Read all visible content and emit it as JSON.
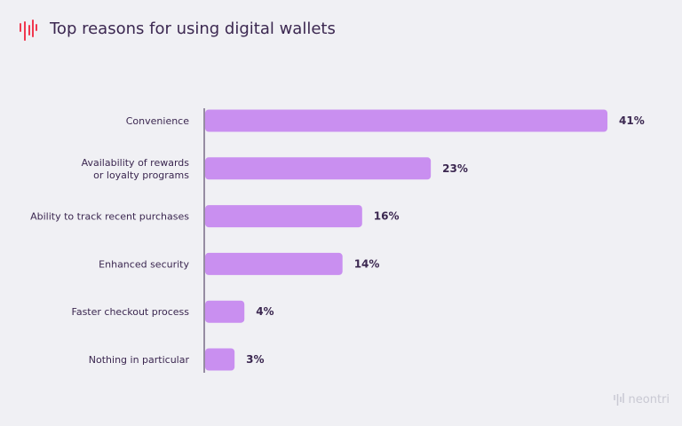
{
  "title": "Top reasons for using digital wallets",
  "brand": "neontri",
  "colors": {
    "bar": "#c98ff0",
    "logo": "#f0384f",
    "text": "#3b2750",
    "background": "#f0f0f4"
  },
  "chart_data": {
    "type": "bar",
    "orientation": "horizontal",
    "title": "Top reasons for using digital wallets",
    "categories": [
      [
        "Convenience"
      ],
      [
        "Availability of rewards",
        "or loyalty programs"
      ],
      [
        "Ability to track recent purchases"
      ],
      [
        "Enhanced security"
      ],
      [
        "Faster checkout process"
      ],
      [
        "Nothing in particular"
      ]
    ],
    "values": [
      41,
      23,
      16,
      14,
      4,
      3
    ],
    "value_labels": [
      "41%",
      "23%",
      "16%",
      "14%",
      "4%",
      "3%"
    ],
    "unit": "%",
    "grid": false
  }
}
